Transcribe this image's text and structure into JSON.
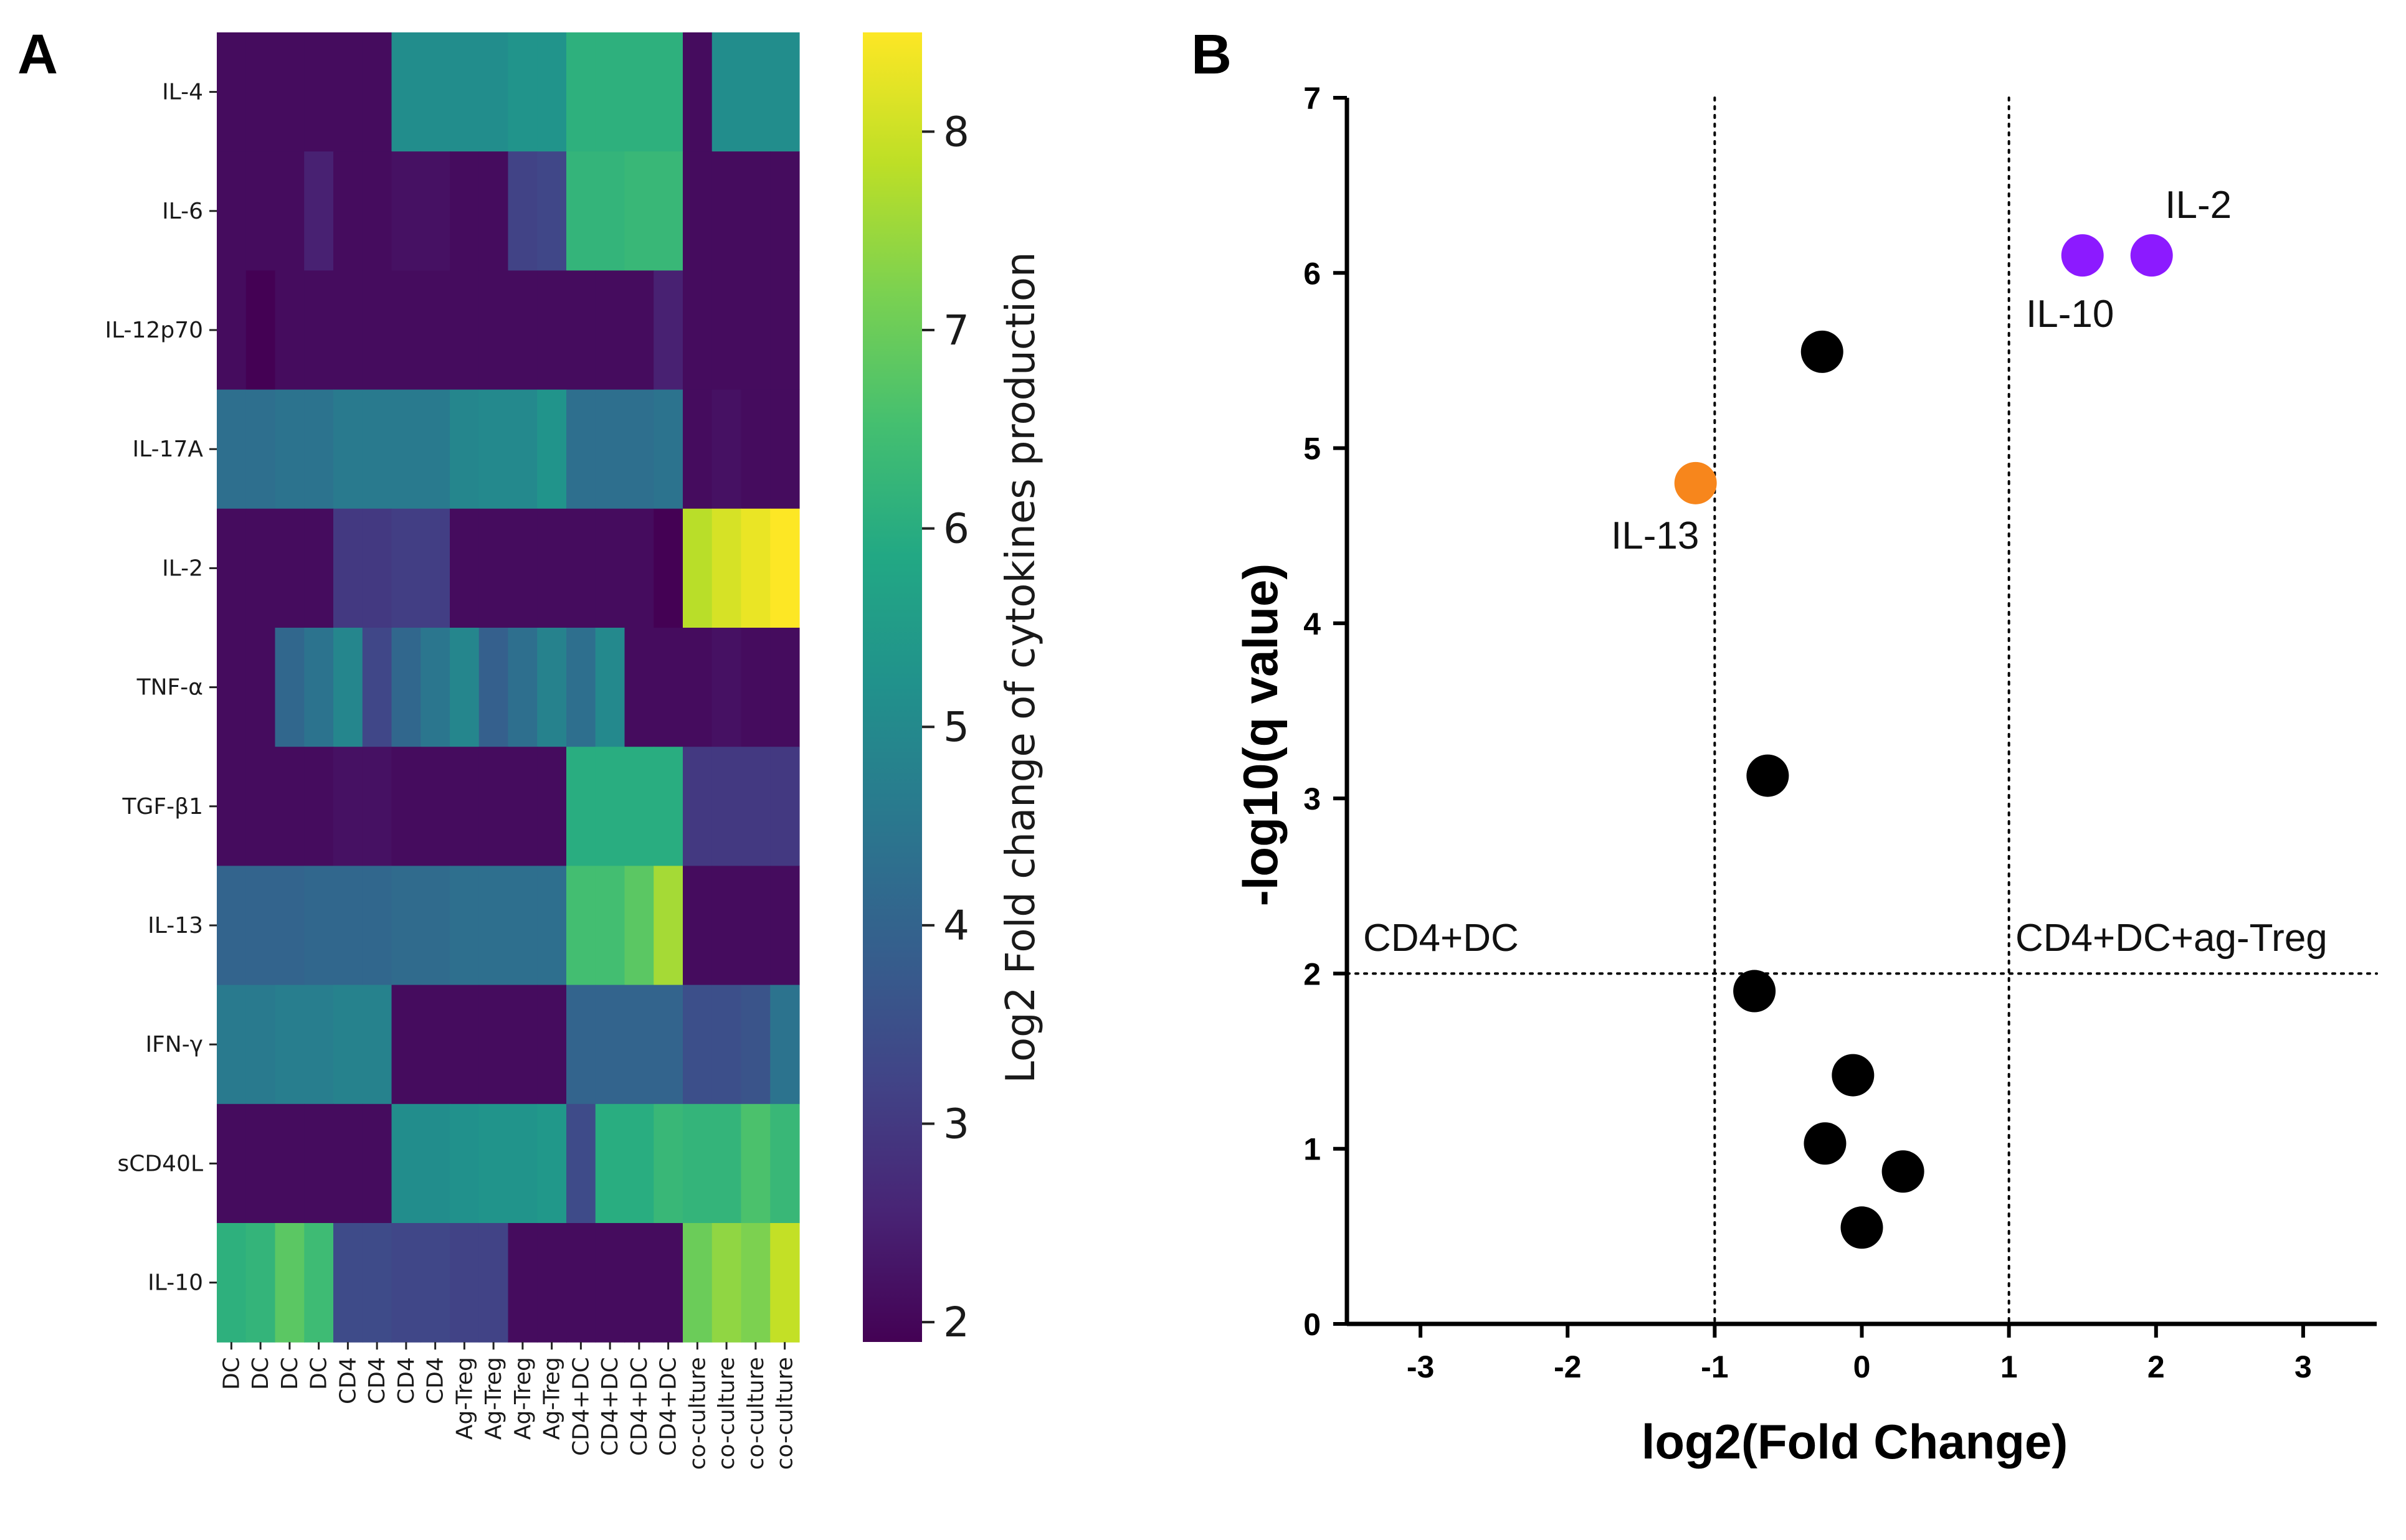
{
  "panels": {
    "a_label": "A",
    "b_label": "B"
  },
  "chart_data": [
    {
      "type": "heatmap",
      "title": "",
      "rows": [
        "IL-4",
        "IL-6",
        "IL-12p70",
        "IL-17A",
        "IL-2",
        "TNF-α",
        "TGF-β1",
        "IL-13",
        "IFN-γ",
        "sCD40L",
        "IL-10"
      ],
      "columns": [
        "DC",
        "DC",
        "DC",
        "DC",
        "CD4",
        "CD4",
        "CD4",
        "CD4",
        "Ag-Treg",
        "Ag-Treg",
        "Ag-Treg",
        "Ag-Treg",
        "CD4+DC",
        "CD4+DC",
        "CD4+DC",
        "CD4+DC",
        "co-culture",
        "co-culture",
        "co-culture",
        "co-culture"
      ],
      "values": [
        [
          2.1,
          2.1,
          2.1,
          2.1,
          2.1,
          2.1,
          5.1,
          5.1,
          5.1,
          5.1,
          5.3,
          5.3,
          6.1,
          6.1,
          6.1,
          6.1,
          2.1,
          5.1,
          5.1,
          5.1
        ],
        [
          2.1,
          2.1,
          2.1,
          2.5,
          2.1,
          2.1,
          2.2,
          2.2,
          2.1,
          2.1,
          3.2,
          3.3,
          6.2,
          6.2,
          6.3,
          6.3,
          2.1,
          2.1,
          2.1,
          2.1
        ],
        [
          2.1,
          1.9,
          2.1,
          2.1,
          2.1,
          2.1,
          2.1,
          2.1,
          2.1,
          2.1,
          2.1,
          2.1,
          2.1,
          2.1,
          2.1,
          2.5,
          2.1,
          2.1,
          2.1,
          2.1
        ],
        [
          4.3,
          4.3,
          4.4,
          4.4,
          4.6,
          4.6,
          4.6,
          4.6,
          4.9,
          5.0,
          5.0,
          5.3,
          4.3,
          4.3,
          4.3,
          4.4,
          2.1,
          2.2,
          2.1,
          2.1
        ],
        [
          2.1,
          2.1,
          2.1,
          2.1,
          3.0,
          3.0,
          3.1,
          3.1,
          2.1,
          2.1,
          2.1,
          2.1,
          2.1,
          2.1,
          2.1,
          1.9,
          7.8,
          8.1,
          8.3,
          8.5
        ],
        [
          2.1,
          2.1,
          4.1,
          4.4,
          4.9,
          3.3,
          4.1,
          4.5,
          4.9,
          3.9,
          4.3,
          4.8,
          4.3,
          5.0,
          2.1,
          2.1,
          2.1,
          2.2,
          2.1,
          2.1
        ],
        [
          2.1,
          2.1,
          2.1,
          2.1,
          2.2,
          2.2,
          2.1,
          2.1,
          2.1,
          2.1,
          2.1,
          2.1,
          6.0,
          6.0,
          6.0,
          6.0,
          3.0,
          3.0,
          3.0,
          3.0
        ],
        [
          4.0,
          4.0,
          4.0,
          4.1,
          4.1,
          4.1,
          4.2,
          4.2,
          4.3,
          4.3,
          4.3,
          4.3,
          6.5,
          6.5,
          6.8,
          7.6,
          2.1,
          2.1,
          2.1,
          2.1
        ],
        [
          4.6,
          4.6,
          4.7,
          4.7,
          4.8,
          4.8,
          2.1,
          2.1,
          2.1,
          2.1,
          2.1,
          2.1,
          4.0,
          4.0,
          4.0,
          4.0,
          3.5,
          3.5,
          3.6,
          4.4
        ],
        [
          2.1,
          2.1,
          2.1,
          2.1,
          2.1,
          2.1,
          5.1,
          5.1,
          5.2,
          5.3,
          5.3,
          5.4,
          3.4,
          6.0,
          6.0,
          6.3,
          6.2,
          6.2,
          6.6,
          6.3
        ],
        [
          6.1,
          6.2,
          6.8,
          6.4,
          3.4,
          3.4,
          3.3,
          3.3,
          3.2,
          3.2,
          2.1,
          2.1,
          2.1,
          2.1,
          2.1,
          2.1,
          7.0,
          7.4,
          7.2,
          7.9
        ]
      ],
      "colorbar": {
        "label": "Log2 Fold change of cytokines production",
        "range": [
          1.9,
          8.5
        ],
        "ticks": [
          "2",
          "3",
          "4",
          "5",
          "6",
          "7",
          "8"
        ],
        "colormap": "viridis"
      }
    },
    {
      "type": "scatter",
      "title": "",
      "xlabel": "log2(Fold Change)",
      "ylabel": "-log10(q value)",
      "xlim": [
        -3.5,
        3.5
      ],
      "ylim": [
        0,
        7
      ],
      "xticks": [
        "-3",
        "-2",
        "-1",
        "0",
        "1",
        "2",
        "3"
      ],
      "yticks": [
        "0",
        "1",
        "2",
        "3",
        "4",
        "5",
        "6",
        "7"
      ],
      "thresholds": {
        "x": [
          -1,
          1
        ],
        "y": 2
      },
      "region_labels": {
        "left": "CD4+DC",
        "right": "CD4+DC+ag-Treg"
      },
      "colors": {
        "down": "#f7861c",
        "up": "#8c1aff",
        "ns": "#000000"
      },
      "points": [
        {
          "x": 1.5,
          "y": 6.1,
          "group": "up",
          "label": "IL-10"
        },
        {
          "x": 1.97,
          "y": 6.1,
          "group": "up",
          "label": "IL-2"
        },
        {
          "x": -1.13,
          "y": 4.8,
          "group": "down",
          "label": "IL-13"
        },
        {
          "x": -0.27,
          "y": 5.55,
          "group": "ns"
        },
        {
          "x": -0.64,
          "y": 3.13,
          "group": "ns"
        },
        {
          "x": -0.73,
          "y": 1.9,
          "group": "ns"
        },
        {
          "x": -0.06,
          "y": 1.42,
          "group": "ns"
        },
        {
          "x": -0.25,
          "y": 1.03,
          "group": "ns"
        },
        {
          "x": 0.28,
          "y": 0.87,
          "group": "ns"
        },
        {
          "x": 0.0,
          "y": 0.55,
          "group": "ns"
        }
      ]
    }
  ]
}
